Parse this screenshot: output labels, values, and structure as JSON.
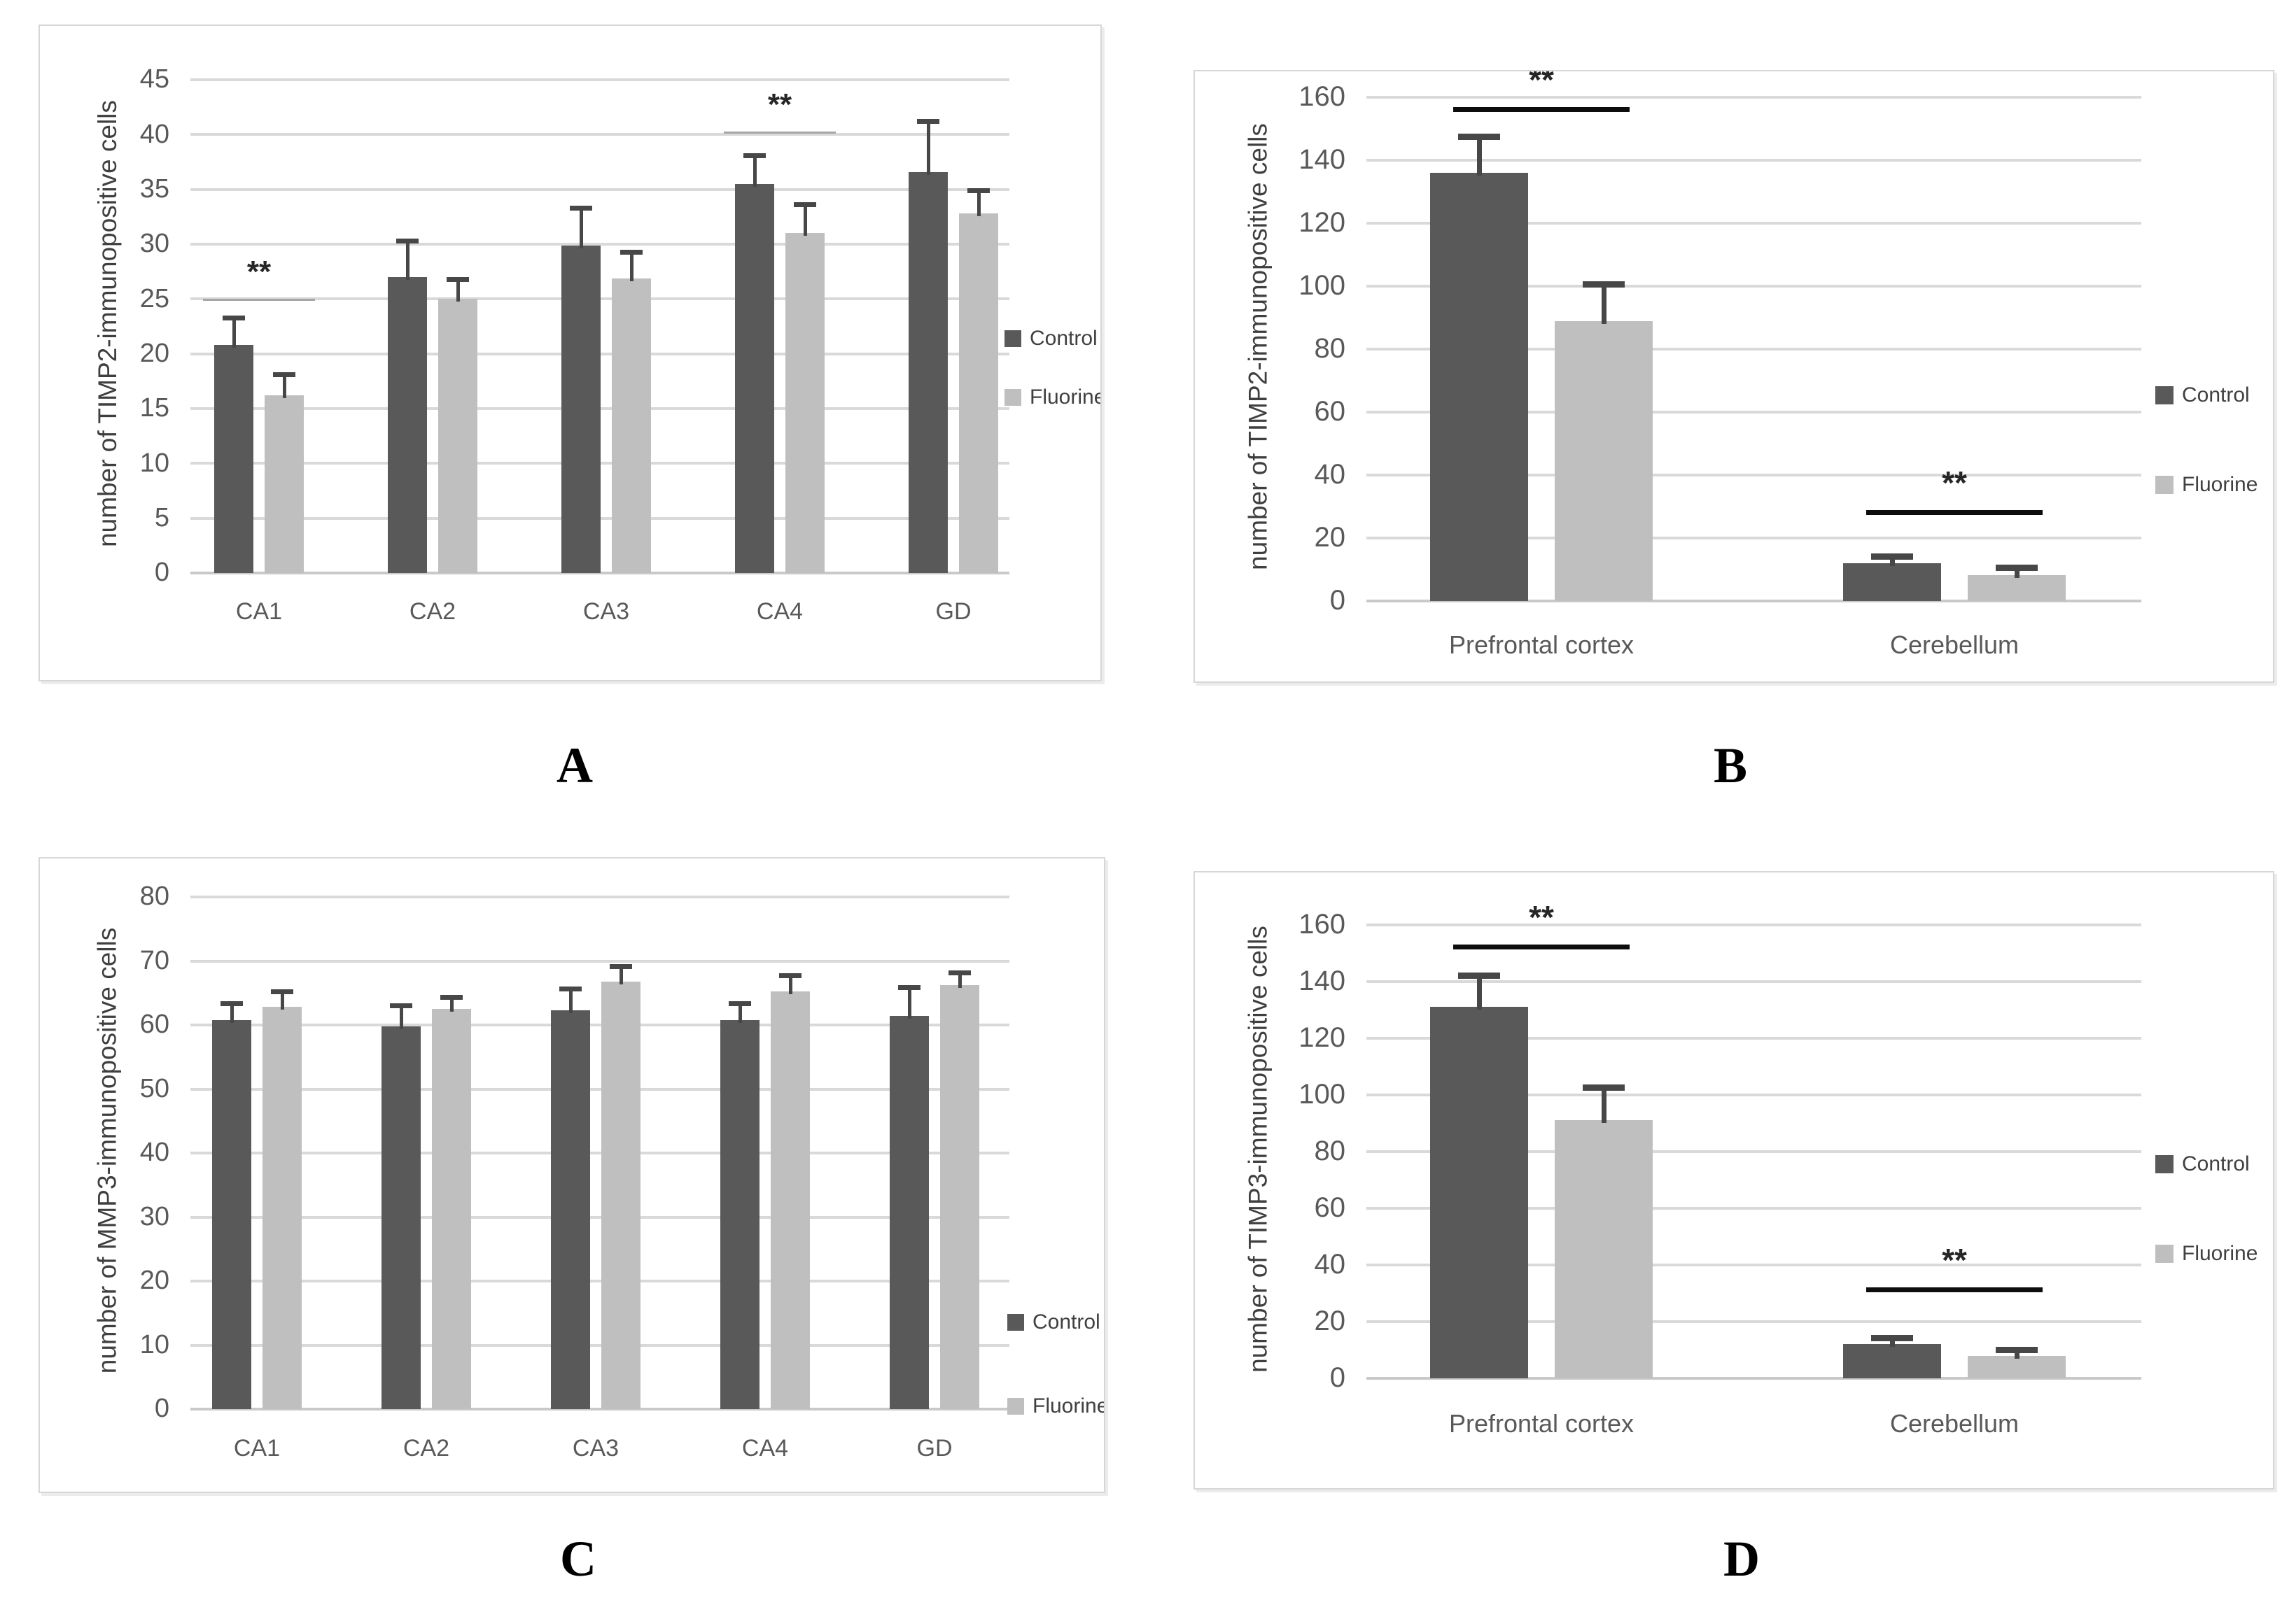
{
  "figure": {
    "description": "Four-panel grayscale bar figure comparing Control vs Fluorine groups",
    "panel_letters": [
      "A",
      "B",
      "C",
      "D"
    ]
  },
  "legend": {
    "control": "Control",
    "fluorine": "Fluorine"
  },
  "colors": {
    "control_bar": "#595959",
    "fluorine_bar": "#bfbfbf",
    "error_bar": "#474747",
    "gridline": "#d9d9d9",
    "sig_bold": "#0d0d0d",
    "sig_faint": "#a6a6a6",
    "tick_text": "#595959",
    "axis_text": "#3f3f3f"
  },
  "chart_data": [
    {
      "panel_label": "A",
      "type": "bar",
      "title": "",
      "xlabel": "",
      "ylabel": "number of TIMP2-immunopositive cells",
      "ylim": [
        0,
        45
      ],
      "ystep": 5,
      "grid": true,
      "legend_position": "right",
      "categories": [
        "CA1",
        "CA2",
        "CA3",
        "CA4",
        "GD"
      ],
      "series": [
        {
          "name": "Control",
          "values": [
            20.8,
            27.0,
            29.9,
            35.5,
            36.6
          ],
          "errors": [
            2.4,
            3.2,
            3.3,
            2.5,
            4.5
          ]
        },
        {
          "name": "Fluorine",
          "values": [
            16.2,
            25.0,
            26.9,
            31.0,
            32.8
          ],
          "errors": [
            1.8,
            1.7,
            2.3,
            2.5,
            2.0
          ]
        }
      ],
      "significance": [
        {
          "category": "CA1",
          "line_y": 25.0,
          "stars": "**",
          "style": "faint"
        },
        {
          "category": "CA4",
          "line_y": 40.3,
          "stars": "**",
          "style": "faint"
        }
      ]
    },
    {
      "panel_label": "B",
      "type": "bar",
      "title": "",
      "xlabel": "",
      "ylabel": "number of TIMP2-immunopositive cells",
      "ylim": [
        0,
        160
      ],
      "ystep": 20,
      "grid": true,
      "legend_position": "right",
      "categories": [
        "Prefrontal cortex",
        "Cerebellum"
      ],
      "series": [
        {
          "name": "Control",
          "values": [
            136.0,
            12.0
          ],
          "errors": [
            11.0,
            1.5
          ]
        },
        {
          "name": "Fluorine",
          "values": [
            89.0,
            8.2
          ],
          "errors": [
            11.0,
            1.8
          ]
        }
      ],
      "significance": [
        {
          "category": "Prefrontal cortex",
          "line_y": 157.0,
          "stars": "**",
          "style": "bold"
        },
        {
          "category": "Cerebellum",
          "line_y": 29.0,
          "stars": "**",
          "style": "bold"
        }
      ]
    },
    {
      "panel_label": "C",
      "type": "bar",
      "title": "",
      "xlabel": "",
      "ylabel": "number of MMP3-immunopositive cells",
      "ylim": [
        0,
        80
      ],
      "ystep": 10,
      "grid": true,
      "legend_position": "right",
      "categories": [
        "CA1",
        "CA2",
        "CA3",
        "CA4",
        "GD"
      ],
      "series": [
        {
          "name": "Control",
          "values": [
            60.8,
            59.8,
            62.3,
            60.8,
            61.4
          ],
          "errors": [
            2.4,
            3.0,
            3.2,
            2.4,
            4.3
          ]
        },
        {
          "name": "Fluorine",
          "values": [
            62.8,
            62.5,
            66.8,
            65.2,
            66.2
          ],
          "errors": [
            2.2,
            1.6,
            2.2,
            2.3,
            1.8
          ]
        }
      ],
      "significance": []
    },
    {
      "panel_label": "D",
      "type": "bar",
      "title": "",
      "xlabel": "",
      "ylabel": "number of TIMP3-immunopositive cells",
      "ylim": [
        0,
        160
      ],
      "ystep": 20,
      "grid": true,
      "legend_position": "right",
      "categories": [
        "Prefrontal cortex",
        "Cerebellum"
      ],
      "series": [
        {
          "name": "Control",
          "values": [
            131.0,
            12.0
          ],
          "errors": [
            10.5,
            1.5
          ]
        },
        {
          "name": "Fluorine",
          "values": [
            91.0,
            8.0
          ],
          "errors": [
            11.0,
            1.5
          ]
        }
      ],
      "significance": [
        {
          "category": "Prefrontal cortex",
          "line_y": 153.0,
          "stars": "**",
          "style": "bold"
        },
        {
          "category": "Cerebellum",
          "line_y": 32.0,
          "stars": "**",
          "style": "bold"
        }
      ]
    }
  ]
}
